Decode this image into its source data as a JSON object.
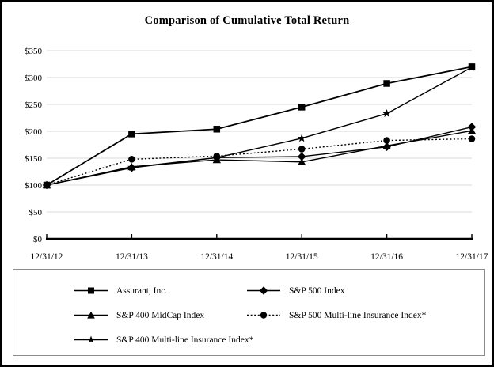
{
  "chart_data": {
    "type": "line",
    "title": "Comparison of Cumulative Total Return",
    "categories": [
      "12/31/12",
      "12/31/13",
      "12/31/14",
      "12/31/15",
      "12/31/16",
      "12/31/17"
    ],
    "series": [
      {
        "name": "Assurant, Inc.",
        "marker": "square",
        "line": "solid",
        "values": [
          100,
          195,
          204,
          245,
          289,
          320
        ]
      },
      {
        "name": "S&P 500 Index",
        "marker": "diamond",
        "line": "solid",
        "values": [
          100,
          132,
          151,
          153,
          171,
          208
        ]
      },
      {
        "name": "S&P 400 MidCap Index",
        "marker": "triangle",
        "line": "solid",
        "values": [
          100,
          134,
          147,
          143,
          173,
          201
        ]
      },
      {
        "name": "S&P 500 Multi-line Insurance Index*",
        "marker": "circle",
        "line": "dotted",
        "values": [
          100,
          148,
          154,
          167,
          183,
          186
        ]
      },
      {
        "name": "S&P 400 Multi-line Insurance Index*",
        "marker": "star",
        "line": "solid",
        "values": [
          100,
          133,
          151,
          187,
          233,
          319
        ]
      }
    ],
    "xlabel": "",
    "ylabel": "",
    "ylim": [
      0,
      350
    ],
    "ytick_step": 50,
    "ytick_labels": [
      "$0",
      "$50",
      "$100",
      "$150",
      "$200",
      "$250",
      "$300",
      "$350"
    ],
    "grid": true,
    "legend_position": "bottom",
    "colors": {
      "series": "#000000",
      "grid": "#d9d9d9",
      "axis": "#000000",
      "background": "#ffffff",
      "legend_border": "#8c8c8c"
    }
  }
}
